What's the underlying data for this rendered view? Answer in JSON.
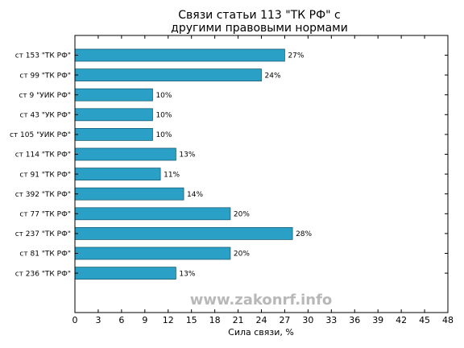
{
  "chart_data": {
    "type": "bar",
    "orientation": "horizontal",
    "title": "Связи статьи 113 \"ТК РФ\" с другими правовыми нормами",
    "title_lines": [
      "Связи статьи 113 \"ТК РФ\" с",
      "другими правовыми нормами"
    ],
    "xlabel": "Сила связи, %",
    "ylabel": "",
    "xlim": [
      0,
      48
    ],
    "x_ticks": [
      0,
      3,
      6,
      9,
      12,
      15,
      18,
      21,
      24,
      27,
      30,
      33,
      36,
      39,
      42,
      45,
      48
    ],
    "categories": [
      "ст 153 \"ТК РФ\"",
      "ст 99 \"ТК РФ\"",
      "ст 9 \"УИК РФ\"",
      "ст 43 \"УК РФ\"",
      "ст 105 \"УИК РФ\"",
      "ст 114 \"ТК РФ\"",
      "ст 91 \"ТК РФ\"",
      "ст 392 \"ТК РФ\"",
      "ст 77 \"ТК РФ\"",
      "ст 237 \"ТК РФ\"",
      "ст 81 \"ТК РФ\"",
      "ст 236 \"ТК РФ\""
    ],
    "values": [
      27,
      24,
      10,
      10,
      10,
      13,
      11,
      14,
      20,
      28,
      20,
      13
    ],
    "data_labels": [
      "27%",
      "24%",
      "10%",
      "10%",
      "10%",
      "13%",
      "11%",
      "14%",
      "20%",
      "28%",
      "20%",
      "13%"
    ],
    "bar_color": "#2ba0c6",
    "bar_edge_color": "#1a5f78",
    "grid": false,
    "legend": "none"
  },
  "watermark": "www.zakonrf.info"
}
